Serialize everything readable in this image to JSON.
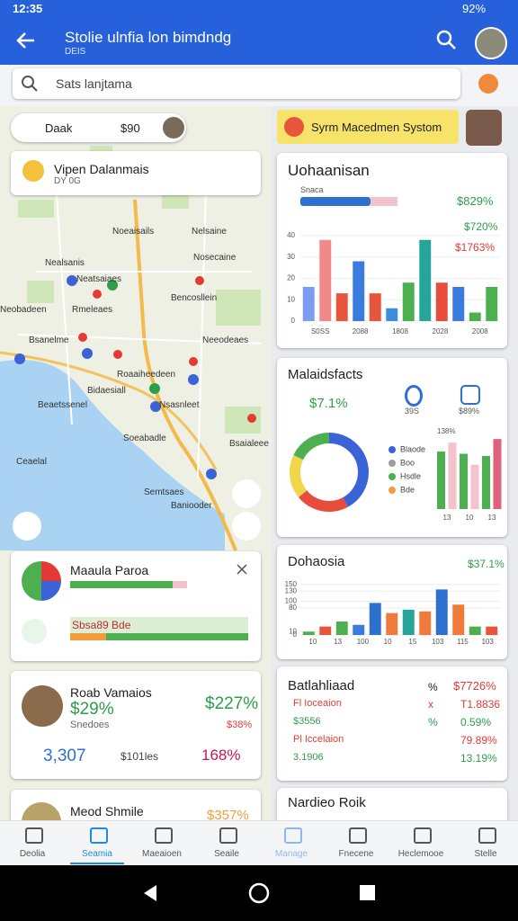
{
  "status_bar": {
    "time": "12:35",
    "battery": "92%"
  },
  "app_bar": {
    "title": "Stolie ulnfia lon bimdndg",
    "subtitle": "DEIS"
  },
  "search": {
    "placeholder": "Sats lanjtama"
  },
  "map": {
    "location_chip": {
      "label": "Daak",
      "value": "$90"
    },
    "place_card": {
      "title": "Vipen Dalanmais",
      "subtitle": "DY 0G"
    },
    "labels": [
      "Noeaisails",
      "Nelsaine",
      "Nealsanis",
      "Nosecaine",
      "Neatsaiaes",
      "Bencosllein",
      "Neobadeen",
      "Rmeleaes",
      "Bsanelme",
      "Neeodeaes",
      "Roaaiheedeen",
      "Bidaesiall",
      "Beaetssenel",
      "Nsasnleet",
      "Soeabadle",
      "Bsaialeee",
      "Ceaelal",
      "Semtsaes",
      "Baniooder"
    ]
  },
  "banner": {
    "text": "Syrm Macedmen Systom"
  },
  "panel_1": {
    "title": "Uohaanisan",
    "legend": "Snaca",
    "stats": [
      "$829%",
      "$720%",
      "$1763%"
    ],
    "ylim": [
      0,
      40
    ],
    "yticks": [
      0,
      10,
      20,
      30,
      40
    ],
    "x_labels": [
      "S0SS",
      "2088",
      "1808",
      "2028",
      "2008"
    ],
    "bars": [
      {
        "value": 16,
        "color": "#7b9cf0"
      },
      {
        "value": 38,
        "color": "#f08a8a"
      },
      {
        "value": 13,
        "color": "#e8553d"
      },
      {
        "value": 28,
        "color": "#3a7be0"
      },
      {
        "value": 13,
        "color": "#e8553d"
      },
      {
        "value": 6,
        "color": "#3a8ee0"
      },
      {
        "value": 18,
        "color": "#4caf50"
      },
      {
        "value": 38,
        "color": "#26a69a"
      },
      {
        "value": 18,
        "color": "#e84c3d"
      },
      {
        "value": 16,
        "color": "#3a7be0"
      },
      {
        "value": 4,
        "color": "#4caf50"
      },
      {
        "value": 16,
        "color": "#4caf50"
      }
    ]
  },
  "panel_2": {
    "title": "Malaidsfacts",
    "stat": "$7.1%",
    "icon_labels": [
      "39S",
      "$89%"
    ],
    "donut": [
      {
        "value": 42,
        "color": "#3a63d8"
      },
      {
        "value": 22,
        "color": "#e74c3c"
      },
      {
        "value": 18,
        "color": "#f1d54a"
      },
      {
        "value": 18,
        "color": "#4caf50"
      }
    ],
    "legend": [
      {
        "name": "Blaode",
        "color": "#3a63d8"
      },
      {
        "name": "Boo",
        "color": "#9e9e9e"
      },
      {
        "name": "Hsdle",
        "color": "#4caf50"
      },
      {
        "name": "Bde",
        "color": "#f39c3c"
      }
    ],
    "bar_label": "138%",
    "ylim": [
      0,
      100
    ],
    "x_labels": [
      "13",
      "10",
      "13"
    ],
    "bars": [
      {
        "value": 78,
        "color": "#4caf50"
      },
      {
        "value": 90,
        "color": "#f4c2cc"
      },
      {
        "value": 75,
        "color": "#4caf50"
      },
      {
        "value": 60,
        "color": "#f4c2cc"
      },
      {
        "value": 72,
        "color": "#4caf50"
      },
      {
        "value": 95,
        "color": "#e06080"
      }
    ]
  },
  "panel_3": {
    "title": "Dohaosia",
    "stat": "$37.1%",
    "ylim": [
      0,
      160
    ],
    "yticks": [
      0,
      10,
      80,
      100,
      130,
      150
    ],
    "x_labels": [
      "10",
      "13",
      "100",
      "10",
      "15",
      "103",
      "115",
      "103"
    ],
    "bars": [
      {
        "value": 10,
        "color": "#4caf50"
      },
      {
        "value": 25,
        "color": "#e8553d"
      },
      {
        "value": 40,
        "color": "#4caf50"
      },
      {
        "value": 30,
        "color": "#3a7be0"
      },
      {
        "value": 95,
        "color": "#2f6fd0"
      },
      {
        "value": 65,
        "color": "#ef7b3b"
      },
      {
        "value": 75,
        "color": "#26a69a"
      },
      {
        "value": 70,
        "color": "#ef7b3b"
      },
      {
        "value": 135,
        "color": "#2f6fd0"
      },
      {
        "value": 90,
        "color": "#ef7b3b"
      },
      {
        "value": 25,
        "color": "#4caf50"
      },
      {
        "value": 25,
        "color": "#e8553d"
      }
    ]
  },
  "panel_4": {
    "title": "Batlahliaad",
    "header_mark": "%",
    "header_value": "$7726%",
    "rows": [
      [
        "Fl Ioceaion",
        "x",
        "T1.8836"
      ],
      [
        "$3556",
        "%",
        "0.59%"
      ],
      [
        "Pl Iccelaion",
        "",
        "79.89%"
      ],
      [
        "3.1906",
        "",
        "13.19%"
      ]
    ]
  },
  "panel_5": {
    "title": "Nardieo Roik"
  },
  "card_progress": {
    "title": "Maaula Paroa",
    "bar_text": "Sbsa89 Bde"
  },
  "card_user": {
    "name": "Roab Vamaios",
    "value": "$29%",
    "subtitle": "Snedoes",
    "right_value": "$227%",
    "right_sub": "$38%",
    "count": "3,307",
    "count_label": "$101les",
    "percent": "168%"
  },
  "card_third": {
    "name": "Meod Shmile",
    "value": "$357%"
  },
  "bottom_nav": [
    "Deolia",
    "Seamia",
    "Maeaioen",
    "Seaile",
    "Manage",
    "Fnecene",
    "Heclemooe",
    "Stelle"
  ]
}
